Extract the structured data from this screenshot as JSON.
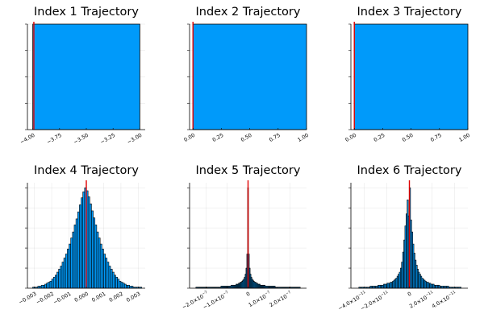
{
  "chart_data": [
    {
      "type": "histogram",
      "title": "Index 1 Trajectory",
      "xlim": [
        -4.05,
        -2.95
      ],
      "x_ticks": [
        -4.0,
        -3.75,
        -3.5,
        -3.25,
        -3.0
      ],
      "x_tick_labels": [
        "−4.00",
        "−3.75",
        "−3.50",
        "−3.25",
        "−3.00"
      ],
      "grid": true,
      "bar_color": "#009AFA",
      "bins": [
        {
          "x0": -4.0,
          "x1": -3.0,
          "count": 1.0
        }
      ],
      "ylim": [
        0,
        1.0
      ],
      "y_ticks": [
        0,
        0.25,
        0.5,
        0.75,
        1.0
      ],
      "vline": -3.99,
      "vline_color": "#E00000"
    },
    {
      "type": "histogram",
      "title": "Index 2 Trajectory",
      "xlim": [
        -0.03,
        1.0
      ],
      "x_ticks": [
        0,
        0.25,
        0.5,
        0.75,
        1.0
      ],
      "x_tick_labels": [
        "0.00",
        "0.25",
        "0.50",
        "0.75",
        "1.00"
      ],
      "grid": true,
      "bar_color": "#009AFA",
      "bins": [
        {
          "x0": 0.0,
          "x1": 1.0,
          "count": 1.0
        }
      ],
      "ylim": [
        0,
        1.0
      ],
      "y_ticks": [
        0,
        0.25,
        0.5,
        0.75,
        1.0
      ],
      "vline": 0.0,
      "vline_color": "#E00000"
    },
    {
      "type": "histogram",
      "title": "Index 3 Trajectory",
      "xlim": [
        -0.03,
        1.0
      ],
      "x_ticks": [
        0,
        0.25,
        0.5,
        0.75,
        1.0
      ],
      "x_tick_labels": [
        "0.00",
        "0.25",
        "0.50",
        "0.75",
        "1.00"
      ],
      "grid": true,
      "bar_color": "#009AFA",
      "bins": [
        {
          "x0": 0.0,
          "x1": 1.0,
          "count": 1.0
        }
      ],
      "ylim": [
        0,
        1.0
      ],
      "y_ticks": [
        0,
        0.25,
        0.5,
        0.75,
        1.0
      ],
      "vline": 0.0,
      "vline_color": "#E00000"
    },
    {
      "type": "histogram",
      "title": "Index 4 Trajectory",
      "xlim": [
        -0.0034,
        0.0034
      ],
      "x_ticks": [
        -0.003,
        -0.002,
        -0.001,
        0.0,
        0.001,
        0.002,
        0.003
      ],
      "x_tick_labels": [
        "−0.003",
        "−0.002",
        "−0.001",
        "0.000",
        "0.001",
        "0.002",
        "0.003"
      ],
      "grid": true,
      "bar_color": "#009AFA",
      "bins_centered": {
        "start": -0.0031,
        "width": 0.0001,
        "counts": [
          1,
          1,
          1,
          2,
          2,
          3,
          3,
          4,
          5,
          6,
          7,
          9,
          11,
          13,
          16,
          19,
          22,
          26,
          30,
          34,
          39,
          44,
          50,
          56,
          63,
          69,
          76,
          83,
          90,
          96,
          100,
          97,
          91,
          84,
          77,
          70,
          63,
          56,
          50,
          44,
          39,
          34,
          30,
          26,
          22,
          19,
          16,
          13,
          11,
          9,
          7,
          6,
          5,
          4,
          3,
          3,
          2,
          2,
          1,
          1,
          1,
          1,
          1
        ]
      },
      "ylim": [
        0,
        105
      ],
      "y_ticks": [
        0,
        20,
        40,
        60,
        80,
        100
      ],
      "vline": 0.0,
      "vline_color": "#E00000"
    },
    {
      "type": "histogram",
      "title": "Index 5 Trajectory",
      "xlim": [
        -2.8e-07,
        2.8e-07
      ],
      "x_ticks": [
        -2e-07,
        -1e-07,
        0,
        1e-07,
        2e-07
      ],
      "x_tick_labels": [
        {
          "m": "−2.0×10",
          "e": "−7"
        },
        {
          "m": "−1.0×10",
          "e": "−7"
        },
        {
          "m": "0",
          "e": ""
        },
        {
          "m": "1.0×10",
          "e": "−7"
        },
        {
          "m": "2.0×10",
          "e": "−7"
        }
      ],
      "grid": true,
      "bar_color": "#009AFA",
      "bins_centered": {
        "start": -2.5e-07,
        "width": 4e-09,
        "counts": [
          1,
          1,
          1,
          1,
          1,
          1,
          1,
          1,
          1,
          1,
          1,
          1,
          1,
          1,
          1,
          1,
          1,
          1,
          1,
          1,
          1,
          1,
          1,
          1,
          1,
          1,
          1,
          1,
          1,
          1,
          2,
          2,
          2,
          2,
          2,
          2,
          2,
          2,
          2,
          2,
          2,
          2,
          3,
          3,
          3,
          3,
          3,
          3,
          4,
          4,
          4,
          5,
          5,
          6,
          6,
          7,
          8,
          9,
          11,
          14,
          20,
          34,
          100,
          34,
          20,
          14,
          11,
          9,
          8,
          7,
          6,
          6,
          5,
          5,
          4,
          4,
          4,
          3,
          3,
          3,
          3,
          3,
          3,
          2,
          2,
          2,
          2,
          2,
          2,
          2,
          2,
          2,
          2,
          2,
          2,
          1,
          1,
          1,
          1,
          1,
          1,
          1,
          1,
          1,
          1,
          1,
          1,
          1,
          1,
          1,
          1,
          1,
          1,
          1,
          1,
          1,
          1,
          1,
          1,
          1,
          1,
          1,
          1,
          1,
          1
        ]
      },
      "ylim": [
        0,
        105
      ],
      "y_ticks": [
        0,
        20,
        40,
        60,
        80,
        100
      ],
      "vline": 0.0,
      "vline_color": "#E00000"
    },
    {
      "type": "histogram",
      "title": "Index 6 Trajectory",
      "xlim": [
        -5.2e-11,
        5.2e-11
      ],
      "x_ticks": [
        -4e-11,
        -2e-11,
        0,
        2e-11,
        4e-11
      ],
      "x_tick_labels": [
        {
          "m": "−4.0×10",
          "e": "−11"
        },
        {
          "m": "−2.0×10",
          "e": "−11"
        },
        {
          "m": "0",
          "e": ""
        },
        {
          "m": "2.0×10",
          "e": "−11"
        },
        {
          "m": "4.0×10",
          "e": "−11"
        }
      ],
      "grid": true,
      "bar_color": "#009AFA",
      "bins_centered": {
        "start": -4.5e-11,
        "width": 1e-12,
        "counts": [
          1,
          1,
          1,
          1,
          1,
          1,
          1,
          1,
          1,
          1,
          2,
          2,
          2,
          2,
          2,
          2,
          2,
          3,
          3,
          3,
          3,
          3,
          4,
          4,
          4,
          5,
          5,
          5,
          6,
          6,
          7,
          8,
          9,
          10,
          12,
          14,
          16,
          20,
          26,
          36,
          48,
          62,
          74,
          88,
          72,
          100,
          68,
          56,
          44,
          35,
          28,
          23,
          19,
          16,
          14,
          12,
          10,
          9,
          8,
          7,
          6,
          6,
          5,
          5,
          4,
          4,
          4,
          3,
          3,
          3,
          3,
          3,
          2,
          2,
          2,
          2,
          2,
          2,
          2,
          2,
          1,
          1,
          1,
          1,
          1,
          1,
          1,
          1,
          1,
          1,
          1
        ]
      },
      "ylim": [
        0,
        105
      ],
      "y_ticks": [
        0,
        20,
        40,
        60,
        80,
        100
      ],
      "vline": 0.0,
      "vline_color": "#E00000"
    }
  ]
}
